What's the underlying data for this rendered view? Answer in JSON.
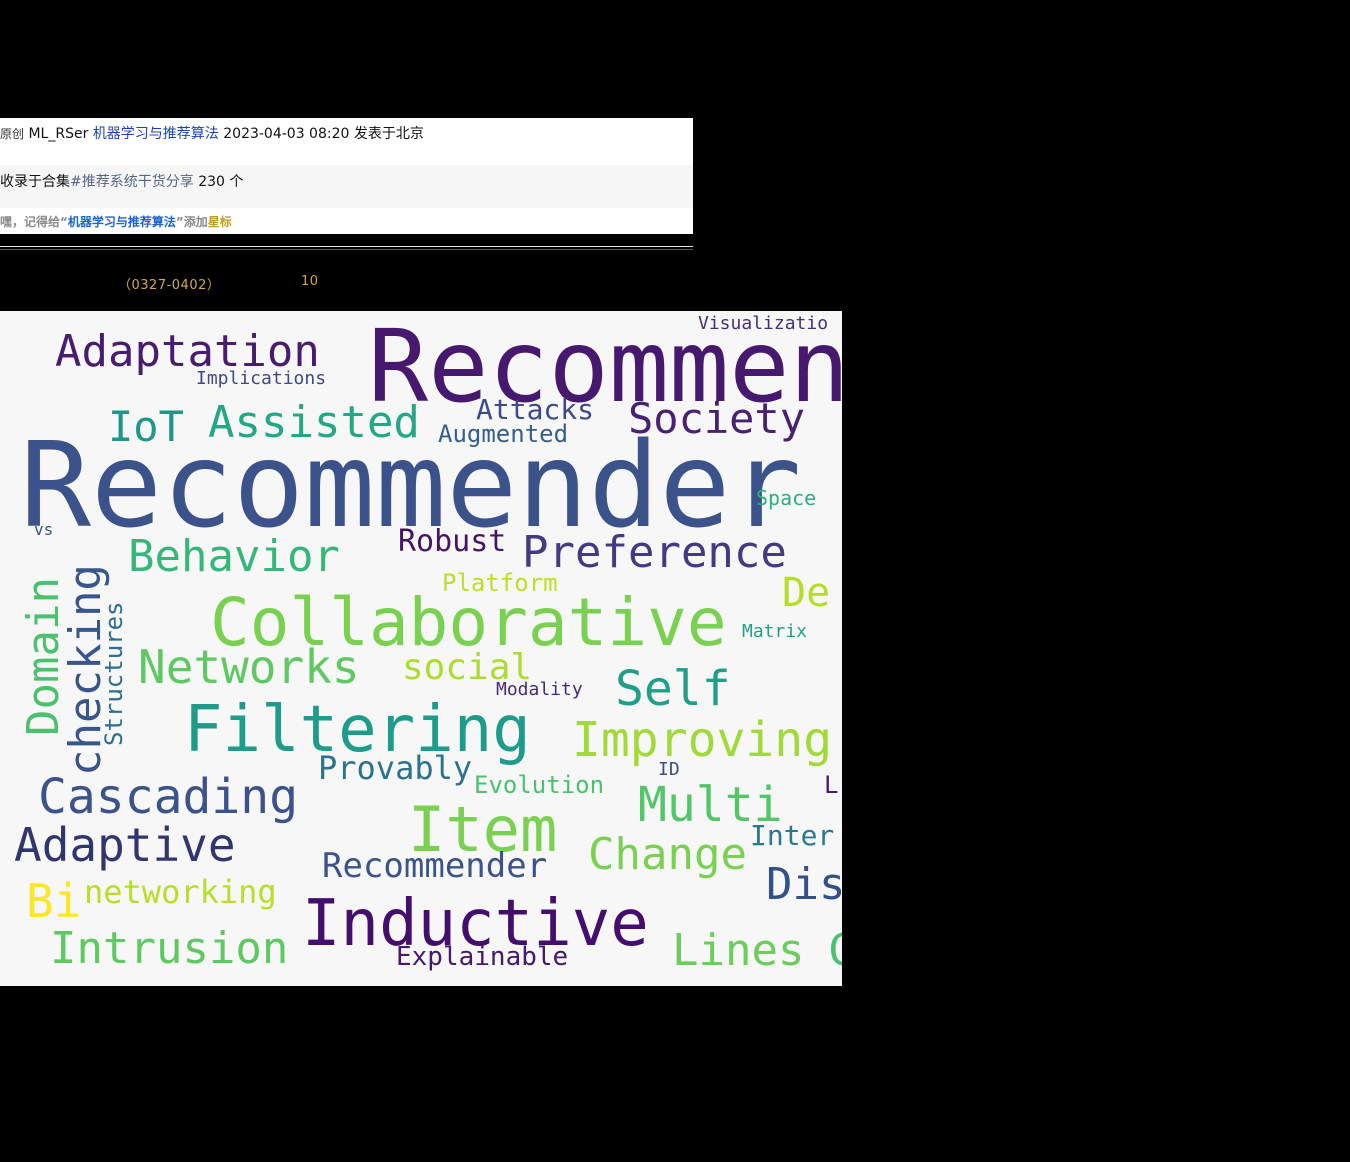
{
  "article_meta": {
    "original_badge": "原创",
    "author": "ML_RSer",
    "account": "机器学习与推荐算法",
    "datetime": "2023-04-03 08:20",
    "location": "发表于北京"
  },
  "collection": {
    "prefix": "收录于合集",
    "tag": "#推荐系统干货分享",
    "count": "230 个"
  },
  "hint": {
    "part1": "嘿，记得给“",
    "account": "机器学习与推荐算法",
    "part2": "”添加",
    "star": "星标"
  },
  "digest": {
    "period": "（0327-0402）",
    "count": "10"
  },
  "wordcloud": {
    "background": "#f7f7f7",
    "words": [
      {
        "text": "Recommender S",
        "color": "#3b528b"
      },
      {
        "text": "Recommen",
        "color": "#46186e"
      },
      {
        "text": "Adaptation",
        "color": "#481d6f"
      },
      {
        "text": "Implications",
        "color": "#3e4989"
      },
      {
        "text": "Visualizatio",
        "color": "#472f7d"
      },
      {
        "text": "IoT",
        "color": "#1f958b"
      },
      {
        "text": "Assisted",
        "color": "#22a884"
      },
      {
        "text": "Attacks",
        "color": "#3e4a89"
      },
      {
        "text": "Augmented",
        "color": "#355f8d"
      },
      {
        "text": "Society",
        "color": "#482173"
      },
      {
        "text": "Space",
        "color": "#2ab07f"
      },
      {
        "text": "vs",
        "color": "#3b528b"
      },
      {
        "text": "Behavior",
        "color": "#35b779"
      },
      {
        "text": "Robust",
        "color": "#471365"
      },
      {
        "text": "Preference",
        "color": "#443983"
      },
      {
        "text": "Domain",
        "color": "#4ac16d"
      },
      {
        "text": "checking",
        "color": "#39568c"
      },
      {
        "text": "Structures",
        "color": "#2e6e8e"
      },
      {
        "text": "Platform",
        "color": "#bddf26"
      },
      {
        "text": "De",
        "color": "#b5de2b"
      },
      {
        "text": "Collaborative",
        "color": "#7ad151"
      },
      {
        "text": "Matrix",
        "color": "#1fa188"
      },
      {
        "text": "Networks",
        "color": "#5ec962"
      },
      {
        "text": "social",
        "color": "#addc30"
      },
      {
        "text": "Modality",
        "color": "#472a7a"
      },
      {
        "text": "Self",
        "color": "#1f9e89"
      },
      {
        "text": "Filtering",
        "color": "#1e9b8a"
      },
      {
        "text": "Improving",
        "color": "#a0da39"
      },
      {
        "text": "Provably",
        "color": "#2c728e"
      },
      {
        "text": "Evolution",
        "color": "#4ac16d"
      },
      {
        "text": "ID",
        "color": "#3e4a89"
      },
      {
        "text": "L",
        "color": "#481b6d"
      },
      {
        "text": "Cascading",
        "color": "#3b528b"
      },
      {
        "text": "Multi",
        "color": "#54c568"
      },
      {
        "text": "Item",
        "color": "#7ad151"
      },
      {
        "text": "Inter",
        "color": "#2a788e"
      },
      {
        "text": "Adaptive",
        "color": "#31356e"
      },
      {
        "text": "Change",
        "color": "#7ad151"
      },
      {
        "text": "Recommender",
        "color": "#3b528b"
      },
      {
        "text": "Dis",
        "color": "#33508a"
      },
      {
        "text": "Bi",
        "color": "#fde725"
      },
      {
        "text": "networking",
        "color": "#b8de29"
      },
      {
        "text": "Inductive",
        "color": "#440f6c"
      },
      {
        "text": "Intrusion",
        "color": "#5ec962"
      },
      {
        "text": "Explainable",
        "color": "#46186e"
      },
      {
        "text": "Lines",
        "color": "#6ccd5a"
      },
      {
        "text": "C",
        "color": "#4ac16d"
      }
    ]
  }
}
